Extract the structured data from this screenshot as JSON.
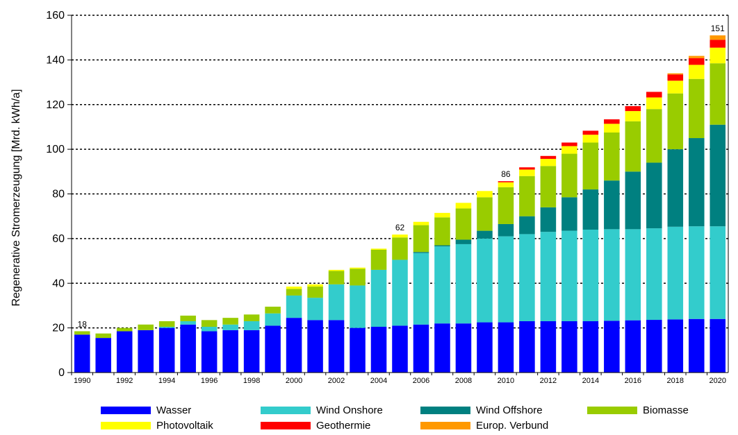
{
  "chart_data": {
    "type": "bar",
    "stacked": true,
    "title": "",
    "xlabel": "",
    "ylabel": "Regenerative Stromerzeugung [Mrd. kWh/a]",
    "ylim": [
      0,
      160
    ],
    "yticks": [
      0,
      20,
      40,
      60,
      80,
      100,
      120,
      140,
      160
    ],
    "grid": "horizontal dotted",
    "legend_position": "bottom",
    "categories": [
      "1990",
      "1991",
      "1992",
      "1993",
      "1994",
      "1995",
      "1996",
      "1997",
      "1998",
      "1999",
      "2000",
      "2001",
      "2002",
      "2003",
      "2004",
      "2005",
      "2006",
      "2007",
      "2008",
      "2009",
      "2010",
      "2011",
      "2012",
      "2013",
      "2014",
      "2015",
      "2016",
      "2017",
      "2018",
      "2019",
      "2020"
    ],
    "xtick_labels": [
      "1990",
      "1992",
      "1994",
      "1996",
      "1998",
      "2000",
      "2002",
      "2004",
      "2006",
      "2008",
      "2010",
      "2012",
      "2014",
      "2016",
      "2018",
      "2020"
    ],
    "series": [
      {
        "name": "Wasser",
        "color": "#0000ff",
        "values": [
          17,
          15.5,
          18.5,
          19,
          20,
          21.5,
          18.5,
          19,
          19,
          21,
          24.5,
          23.5,
          23.5,
          20,
          20.5,
          21,
          21.5,
          22,
          22,
          22.5,
          22.5,
          23,
          23,
          23,
          23,
          23.2,
          23.4,
          23.6,
          23.8,
          24,
          24
        ]
      },
      {
        "name": "Wind Onshore",
        "color": "#33cccc",
        "values": [
          0,
          0,
          0,
          0,
          0.5,
          1.5,
          2,
          2.5,
          4,
          5.5,
          10,
          10,
          16,
          19,
          25.5,
          29.5,
          32,
          34.5,
          35.5,
          37.5,
          38.5,
          39,
          40,
          40.5,
          41,
          41,
          40.8,
          41,
          41.5,
          41.5,
          41.5
        ]
      },
      {
        "name": "Wind Offshore",
        "color": "#008080",
        "values": [
          0,
          0,
          0,
          0,
          0,
          0,
          0,
          0,
          0,
          0,
          0,
          0,
          0,
          0,
          0,
          0,
          0.5,
          0.5,
          2,
          3.5,
          5.5,
          8,
          11,
          15,
          18,
          21.8,
          25.8,
          29.4,
          34.7,
          39.5,
          45.5
        ]
      },
      {
        "name": "Biomasse",
        "color": "#99cc00",
        "values": [
          1.5,
          2,
          1.5,
          2.5,
          2.5,
          2.5,
          3,
          3,
          3,
          3,
          3,
          5,
          6,
          7.5,
          9,
          10,
          12,
          12.5,
          14,
          15,
          16.5,
          18,
          18.5,
          19.5,
          21,
          21.5,
          22.5,
          24,
          25,
          26.5,
          27.5
        ]
      },
      {
        "name": "Photovoltaik",
        "color": "#ffff00",
        "values": [
          0,
          0,
          0,
          0,
          0,
          0,
          0,
          0,
          0,
          0,
          1,
          1,
          0.5,
          0.5,
          0.5,
          1.3,
          1.5,
          2,
          2.5,
          2.8,
          2.2,
          2.9,
          3.2,
          3.4,
          3.5,
          3.9,
          4.6,
          5.2,
          5.7,
          6.3,
          7
        ]
      },
      {
        "name": "Geothermie",
        "color": "#ff0000",
        "values": [
          0,
          0,
          0,
          0,
          0,
          0,
          0,
          0,
          0,
          0,
          0,
          0,
          0,
          0,
          0,
          0,
          0,
          0,
          0,
          0,
          0.5,
          1,
          1.3,
          1.6,
          1.8,
          2,
          2.2,
          2.5,
          2.8,
          3,
          3.5
        ]
      },
      {
        "name": "Europ. Verbund",
        "color": "#ff9900",
        "values": [
          0,
          0,
          0,
          0,
          0,
          0,
          0,
          0,
          0,
          0,
          0,
          0,
          0,
          0,
          0,
          0,
          0,
          0,
          0,
          0,
          0,
          0,
          0,
          0,
          0,
          0,
          0,
          0,
          0.5,
          1,
          2
        ]
      }
    ],
    "annotations": [
      {
        "category": "1990",
        "label": "18"
      },
      {
        "category": "2005",
        "label": "62"
      },
      {
        "category": "2010",
        "label": "86"
      },
      {
        "category": "2020",
        "label": "151"
      }
    ]
  }
}
